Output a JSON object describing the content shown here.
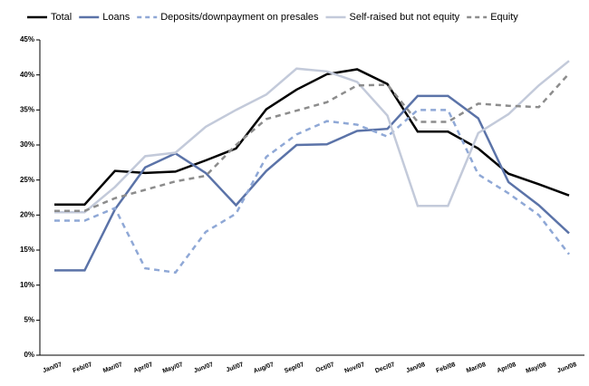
{
  "chart_data": {
    "type": "line",
    "categories": [
      "Jan/07",
      "Feb/07",
      "Mar/07",
      "Apr/07",
      "May/07",
      "Jun/07",
      "Jul/07",
      "Aug/07",
      "Sep/07",
      "Oct/07",
      "Nov/07",
      "Dec/07",
      "Jan/08",
      "Feb/08",
      "Mar/08",
      "Apr/08",
      "May/08",
      "Jun/08"
    ],
    "series": [
      {
        "name": "Total",
        "color": "#000000",
        "dashed": false,
        "values": [
          21.5,
          21.5,
          26.3,
          26,
          26.2,
          27.8,
          29.5,
          35.1,
          37.9,
          40.1,
          40.8,
          38.7,
          31.9,
          31.9,
          29.5,
          25.9,
          24.4,
          22.8
        ]
      },
      {
        "name": "Loans",
        "color": "#5b73a8",
        "dashed": false,
        "values": [
          12.1,
          12.1,
          20.8,
          26.8,
          28.8,
          26,
          21.4,
          26.3,
          30,
          30.1,
          32,
          32.3,
          37,
          37,
          33.8,
          24.7,
          21.4,
          17.4
        ]
      },
      {
        "name": "Deposits/downpayment on presales",
        "color": "#8fa8d6",
        "dashed": true,
        "values": [
          19.2,
          19.2,
          21,
          12.4,
          11.8,
          17.6,
          20.2,
          28.3,
          31.5,
          33.4,
          32.9,
          31.2,
          35,
          35,
          25.8,
          23.1,
          20,
          14.4
        ]
      },
      {
        "name": "Self-raised but not equity",
        "color": "#c3cada",
        "dashed": false,
        "values": [
          20.4,
          20.4,
          24,
          28.4,
          28.9,
          32.6,
          35,
          37.2,
          40.9,
          40.5,
          39,
          34.2,
          21.3,
          21.3,
          31.7,
          34.4,
          38.5,
          42
        ]
      },
      {
        "name": "Equity",
        "color": "#8c8c8c",
        "dashed": true,
        "values": [
          20.6,
          20.6,
          22.4,
          23.6,
          24.8,
          25.6,
          30,
          33.7,
          34.9,
          36.1,
          38.5,
          38.6,
          33.3,
          33.3,
          35.9,
          35.6,
          35.4,
          40.2
        ]
      }
    ],
    "ylim": [
      0,
      45
    ],
    "yticks": [
      {
        "value": 0,
        "label": "0%"
      },
      {
        "value": 5,
        "label": "5%"
      },
      {
        "value": 10,
        "label": "10%"
      },
      {
        "value": 15,
        "label": "15%"
      },
      {
        "value": 20,
        "label": "20%"
      },
      {
        "value": 25,
        "label": "25%"
      },
      {
        "value": 30,
        "label": "30%"
      },
      {
        "value": 35,
        "label": "35%"
      },
      {
        "value": 40,
        "label": "40%"
      },
      {
        "value": 45,
        "label": "45%"
      }
    ],
    "grid": false,
    "legend": "top"
  }
}
